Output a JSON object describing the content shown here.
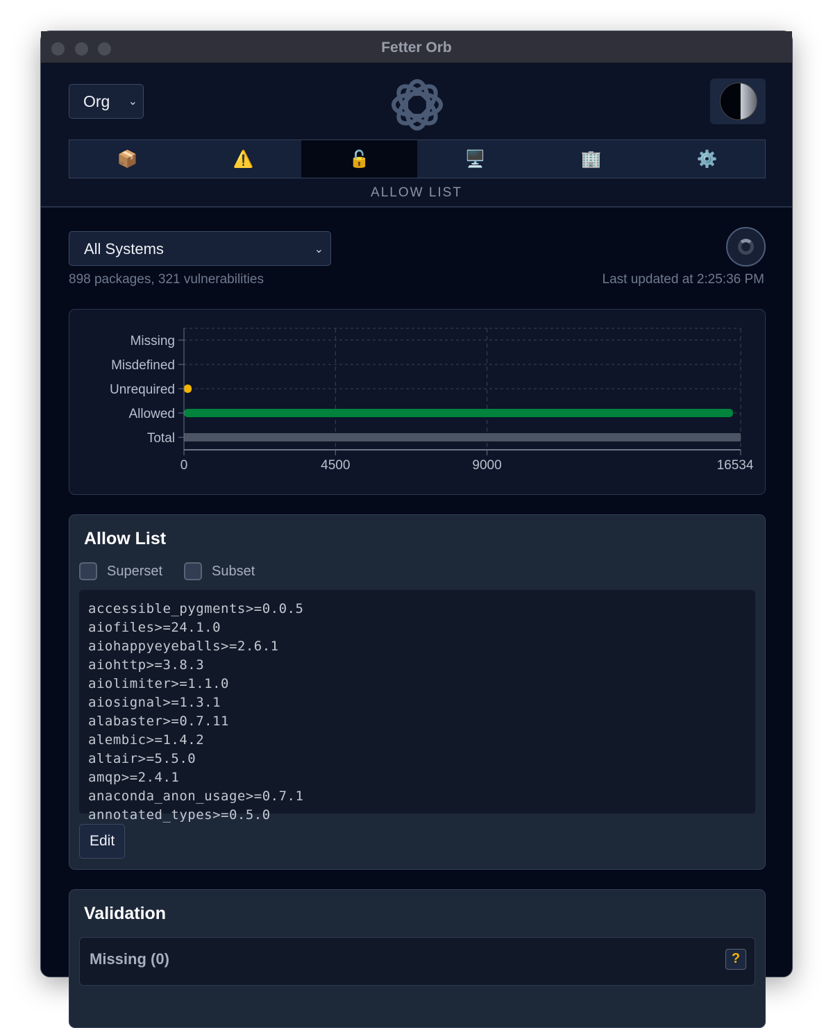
{
  "window": {
    "title": "Fetter Orb"
  },
  "header": {
    "org_select": "Org",
    "tabs": [
      {
        "icon": "package-icon",
        "glyph": "📦"
      },
      {
        "icon": "warning-icon",
        "glyph": "⚠️"
      },
      {
        "icon": "unlock-icon",
        "glyph": "🔓",
        "active": true
      },
      {
        "icon": "computer-icon",
        "glyph": "🖥️"
      },
      {
        "icon": "building-icon",
        "glyph": "🏢"
      },
      {
        "icon": "gear-icon",
        "glyph": "⚙️"
      }
    ],
    "section_label": "ALLOW LIST"
  },
  "main": {
    "system_select": "All Systems",
    "summary": "898 packages, 321 vulnerabilities",
    "last_updated": "Last updated at 2:25:36 PM"
  },
  "chart_data": {
    "type": "bar",
    "orientation": "horizontal",
    "categories": [
      "Missing",
      "Misdefined",
      "Unrequired",
      "Allowed",
      "Total"
    ],
    "values": [
      0,
      0,
      227,
      16307,
      16534
    ],
    "colors": [
      "#f4b400",
      "#f4b400",
      "#f4b400",
      "#00843d",
      "#4b5563"
    ],
    "xticks": [
      "0",
      "4500",
      "9000",
      "16534"
    ],
    "xtick_values": [
      0,
      4500,
      9000,
      16534
    ],
    "xlim": [
      0,
      16534
    ],
    "grid": true
  },
  "allow_list": {
    "title": "Allow List",
    "superset_label": "Superset",
    "subset_label": "Subset",
    "lines": [
      "accessible_pygments>=0.0.5",
      "aiofiles>=24.1.0",
      "aiohappyeyeballs>=2.6.1",
      "aiohttp>=3.8.3",
      "aiolimiter>=1.1.0",
      "aiosignal>=1.3.1",
      "alabaster>=0.7.11",
      "alembic>=1.4.2",
      "altair>=5.5.0",
      "amqp>=2.4.1",
      "anaconda_anon_usage>=0.7.1",
      "annotated_types>=0.5.0"
    ],
    "edit_label": "Edit"
  },
  "validation": {
    "title": "Validation",
    "missing_label": "Missing (0)",
    "help": "?"
  }
}
